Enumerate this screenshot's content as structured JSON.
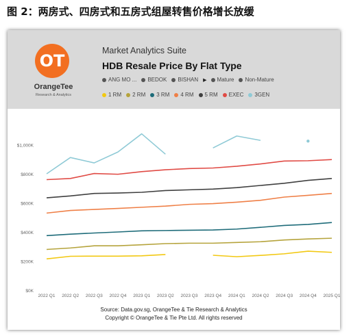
{
  "page_title": "图 2：两房式、四房式和五房式组屋转售价格增长放缓",
  "header": {
    "logo_mark": "OT",
    "logo_name": "OrangeTee",
    "logo_sub": "Research & Analytics",
    "suite": "Market Analytics Suite"
  },
  "legend_filters": {
    "items": [
      {
        "label": "ANG MO ...",
        "color": "#555555"
      },
      {
        "label": "BEDOK",
        "color": "#555555"
      },
      {
        "label": "BISHAN",
        "color": "#555555"
      },
      {
        "label": "Mature",
        "color": "#555555"
      },
      {
        "label": "Non-Mature",
        "color": "#555555"
      }
    ]
  },
  "source": {
    "line1": "Source: Data.gov.sg, OrangeTee & Tie Research & Analytics",
    "line2": "Copyright © OrangeTee & Tie Pte Ltd. All rights reserved"
  },
  "chart_data": {
    "type": "line",
    "title": "HDB Resale Price By Flat Type",
    "xlabel": "",
    "ylabel": "",
    "ylim": [
      0,
      1200000
    ],
    "y_ticks": [
      0,
      200000,
      400000,
      600000,
      800000,
      1000000
    ],
    "y_tick_labels": [
      "$0K",
      "$200K",
      "$400K",
      "$600K",
      "$800K",
      "$1,000K"
    ],
    "grid": false,
    "legend_placement": "top",
    "categories": [
      "2022 Q1",
      "2022 Q2",
      "2022 Q3",
      "2022 Q4",
      "2023 Q1",
      "2023 Q2",
      "2023 Q3",
      "2023 Q4",
      "2024 Q1",
      "2024 Q2",
      "2024 Q3",
      "2024 Q4",
      "2025 Q1"
    ],
    "series": [
      {
        "name": "1 RM",
        "color": "#f2c811",
        "values": [
          215000,
          233000,
          234000,
          234000,
          236000,
          245000,
          null,
          240000,
          230000,
          239000,
          250000,
          268000,
          260000
        ]
      },
      {
        "name": "2 RM",
        "color": "#b5a33b",
        "values": [
          280000,
          290000,
          305000,
          305000,
          312000,
          320000,
          323000,
          323000,
          328000,
          333000,
          345000,
          352000,
          357000
        ]
      },
      {
        "name": "3 RM",
        "color": "#1d6b79",
        "values": [
          375000,
          385000,
          393000,
          400000,
          408000,
          410000,
          412000,
          414000,
          420000,
          432000,
          445000,
          452000,
          465000
        ]
      },
      {
        "name": "4 RM",
        "color": "#ef7f46",
        "values": [
          530000,
          548000,
          555000,
          562000,
          570000,
          578000,
          590000,
          595000,
          605000,
          618000,
          640000,
          652000,
          665000
        ]
      },
      {
        "name": "5 RM",
        "color": "#3f3f3f",
        "values": [
          635000,
          648000,
          665000,
          668000,
          673000,
          685000,
          690000,
          695000,
          705000,
          720000,
          735000,
          755000,
          768000
        ]
      },
      {
        "name": "EXEC",
        "color": "#e04a44",
        "values": [
          760000,
          768000,
          802000,
          797000,
          815000,
          828000,
          836000,
          840000,
          852000,
          868000,
          888000,
          890000,
          898000
        ]
      },
      {
        "name": "3GEN",
        "color": "#8fcad6",
        "values": [
          800000,
          912000,
          875000,
          950000,
          1075000,
          935000,
          null,
          978000,
          1060000,
          1030000,
          null,
          1025000,
          null
        ]
      }
    ]
  }
}
